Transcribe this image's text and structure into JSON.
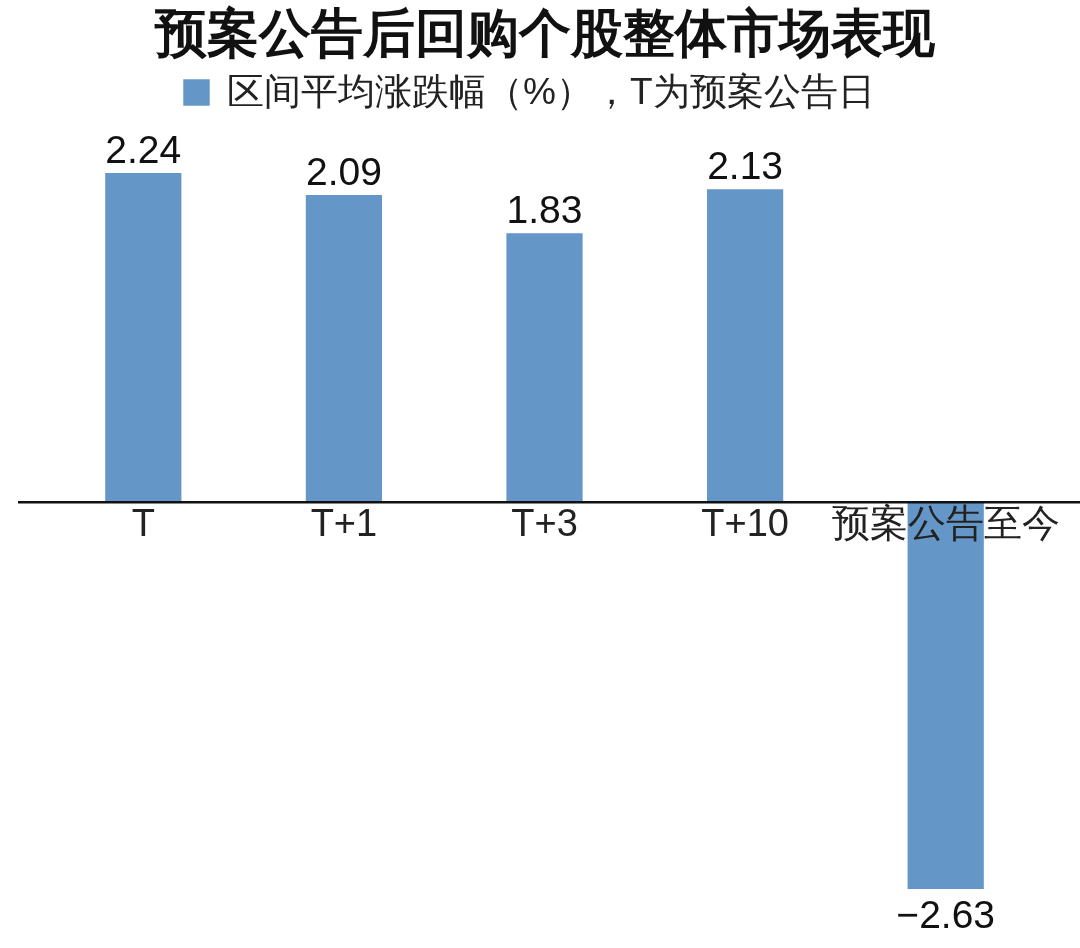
{
  "chart_data": {
    "type": "bar",
    "title": "预案公告后回购个股整体市场表现",
    "categories": [
      "T",
      "T+1",
      "T+3",
      "T+10",
      "预案公告至今"
    ],
    "series": [
      {
        "name": "区间平均涨跌幅（%），T为预案公告日",
        "color": "#6596c8",
        "values": [
          2.24,
          2.09,
          1.83,
          2.13,
          -2.63
        ]
      }
    ],
    "data_labels": true,
    "legend": "top",
    "tick_labels": "x"
  }
}
